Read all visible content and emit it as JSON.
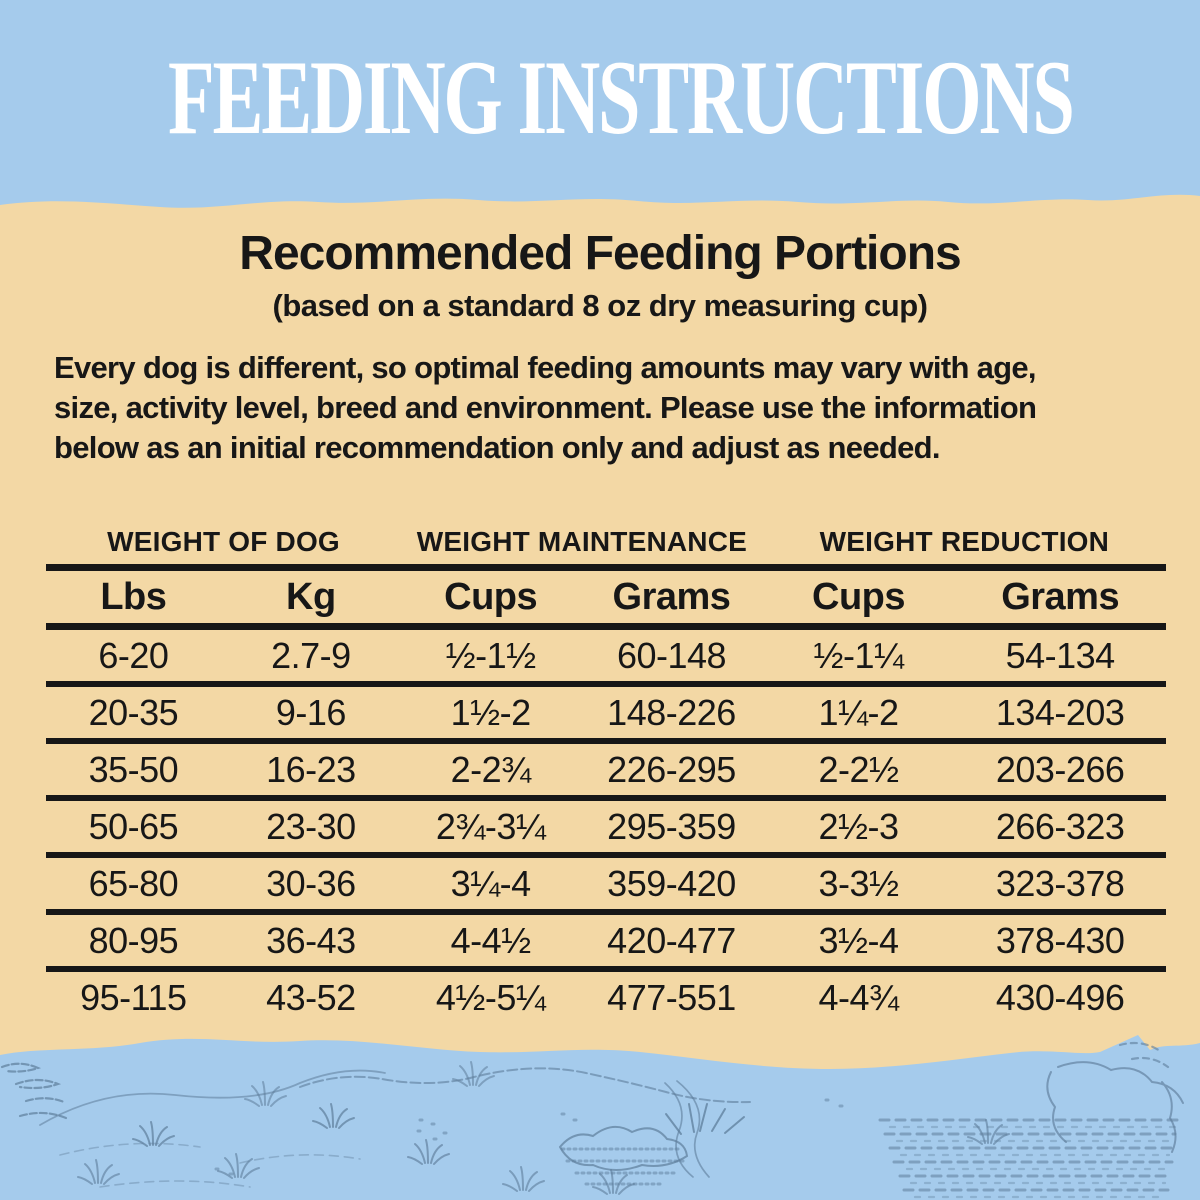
{
  "colors": {
    "sky_blue": "#a5cbec",
    "sand": "#f3d8a5",
    "ink": "#171717",
    "title_white": "#ffffff",
    "sketch_blue": "#5e7d9b"
  },
  "header": {
    "title": "FEEDING INSTRUCTIONS"
  },
  "portions": {
    "heading": "Recommended Feeding Portions",
    "subheading": "(based on a standard 8 oz dry measuring cup)",
    "description_lines": [
      "Every dog is different, so optimal feeding amounts may vary with age,",
      "size, activity level, breed and environment. Please use the information",
      "below as an initial recommendation only and adjust as needed."
    ]
  },
  "table": {
    "group_headers": [
      "WEIGHT OF DOG",
      "WEIGHT MAINTENANCE",
      "WEIGHT REDUCTION"
    ],
    "column_headers": [
      "Lbs",
      "Kg",
      "Cups",
      "Grams",
      "Cups",
      "Grams"
    ],
    "rows": [
      [
        "6-20",
        "2.7-9",
        "½-1½",
        "60-148",
        "½-1¼",
        "54-134"
      ],
      [
        "20-35",
        "9-16",
        "1½-2",
        "148-226",
        "1¼-2",
        "134-203"
      ],
      [
        "35-50",
        "16-23",
        "2-2¾",
        "226-295",
        "2-2½",
        "203-266"
      ],
      [
        "50-65",
        "23-30",
        "2¾-3¼",
        "295-359",
        "2½-3",
        "266-323"
      ],
      [
        "65-80",
        "30-36",
        "3¼-4",
        "359-420",
        "3-3½",
        "323-378"
      ],
      [
        "80-95",
        "36-43",
        "4-4½",
        "420-477",
        "3½-4",
        "378-430"
      ],
      [
        "95-115",
        "43-52",
        "4½-5¼",
        "477-551",
        "4-4¾",
        "430-496"
      ]
    ]
  }
}
